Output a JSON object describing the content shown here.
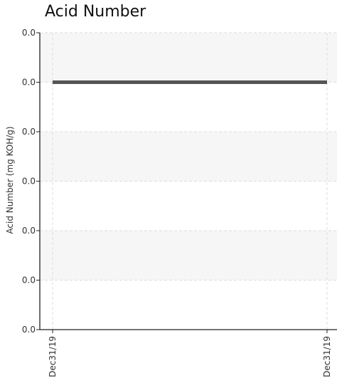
{
  "chart_data": {
    "type": "line",
    "title": "Acid Number",
    "xlabel": "",
    "ylabel": "Acid Number (mg KOH/g)",
    "x_tick_labels": [
      "Dec31/19",
      "Dec31/19"
    ],
    "y_tick_labels": [
      "0.0",
      "0.0",
      "0.0",
      "0.0",
      "0.0",
      "0.0",
      "0.0"
    ],
    "ylim": [
      0,
      0.03
    ],
    "grid": true,
    "legend": "none",
    "series": [
      {
        "x": [
          "Dec31/19",
          "Dec31/19"
        ],
        "values": [
          0.025,
          0.025
        ],
        "color": "#555555"
      }
    ],
    "colors": {
      "band": "#f6f6f6",
      "grid": "#dddddd",
      "axis": "#222222"
    }
  }
}
